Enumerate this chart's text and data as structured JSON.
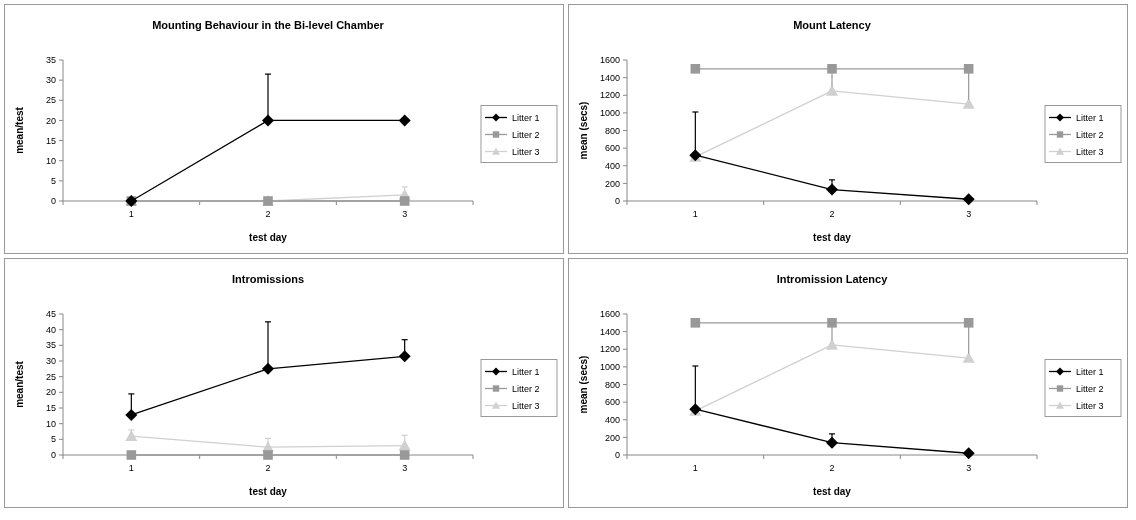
{
  "chart_data": [
    {
      "type": "line",
      "title": "Mounting Behaviour in the Bi-level Chamber",
      "xlabel": "test day",
      "ylabel": "mean/test",
      "categories": [
        "1",
        "2",
        "3"
      ],
      "ylim": [
        0,
        35
      ],
      "yticks": [
        0,
        5,
        10,
        15,
        20,
        25,
        30,
        35
      ],
      "grid": false,
      "legend": "right",
      "line_style": "solid",
      "series": [
        {
          "name": "Litter 1",
          "color": "#000000",
          "marker": "diamond",
          "values": [
            0,
            20,
            20
          ],
          "errors": [
            null,
            [
              20,
              31.5
            ],
            null
          ]
        },
        {
          "name": "Litter 2",
          "color": "#999999",
          "marker": "square",
          "values": [
            0,
            0,
            0
          ]
        },
        {
          "name": "Litter 3",
          "color": "#d0d0d0",
          "marker": "triangle",
          "values": [
            0,
            0,
            1.5
          ],
          "errors": [
            null,
            null,
            [
              1.5,
              3.5
            ]
          ]
        }
      ]
    },
    {
      "type": "line",
      "title": "Mount Latency",
      "xlabel": "test day",
      "ylabel": "mean (secs)",
      "categories": [
        "1",
        "2",
        "3"
      ],
      "ylim": [
        0,
        1600
      ],
      "yticks": [
        0,
        200,
        400,
        600,
        800,
        1000,
        1200,
        1400,
        1600
      ],
      "grid": false,
      "legend": "right",
      "line_style": "solid",
      "series": [
        {
          "name": "Litter 1",
          "color": "#000000",
          "marker": "diamond",
          "values": [
            520,
            130,
            20
          ],
          "errors": [
            [
              520,
              1010
            ],
            [
              130,
              240
            ],
            null
          ]
        },
        {
          "name": "Litter 2",
          "color": "#999999",
          "marker": "square",
          "values": [
            1500,
            1500,
            1500
          ],
          "errors": [
            null,
            [
              1300,
              1500
            ],
            [
              1150,
              1500
            ]
          ]
        },
        {
          "name": "Litter 3",
          "color": "#d0d0d0",
          "marker": "triangle",
          "values": [
            500,
            1250,
            1100
          ]
        }
      ]
    },
    {
      "type": "line",
      "title": "Intromissions",
      "xlabel": "test day",
      "ylabel": "mean/test",
      "categories": [
        "1",
        "2",
        "3"
      ],
      "ylim": [
        0,
        45
      ],
      "yticks": [
        0,
        5,
        10,
        15,
        20,
        25,
        30,
        35,
        40,
        45
      ],
      "grid": false,
      "legend": "right",
      "line_style": "solid",
      "series": [
        {
          "name": "Litter 1",
          "color": "#000000",
          "marker": "diamond",
          "values": [
            12.8,
            27.5,
            31.5
          ],
          "errors": [
            [
              12.8,
              19.5
            ],
            [
              27.5,
              42.5
            ],
            [
              31.5,
              36.8
            ]
          ]
        },
        {
          "name": "Litter 2",
          "color": "#999999",
          "marker": "square",
          "values": [
            0,
            0,
            0
          ]
        },
        {
          "name": "Litter 3",
          "color": "#d0d0d0",
          "marker": "triangle",
          "values": [
            6,
            2.5,
            3
          ],
          "errors": [
            [
              6,
              8
            ],
            [
              2.5,
              5.3
            ],
            [
              3,
              6.3
            ]
          ]
        }
      ]
    },
    {
      "type": "line",
      "title": "Intromission Latency",
      "xlabel": "test day",
      "ylabel": "mean (secs)",
      "categories": [
        "1",
        "2",
        "3"
      ],
      "ylim": [
        0,
        1600
      ],
      "yticks": [
        0,
        200,
        400,
        600,
        800,
        1000,
        1200,
        1400,
        1600
      ],
      "grid": false,
      "legend": "right",
      "line_style": "solid",
      "series": [
        {
          "name": "Litter 1",
          "color": "#000000",
          "marker": "diamond",
          "values": [
            520,
            140,
            20
          ],
          "errors": [
            [
              520,
              1010
            ],
            [
              140,
              240
            ],
            null
          ]
        },
        {
          "name": "Litter 2",
          "color": "#999999",
          "marker": "square",
          "values": [
            1500,
            1500,
            1500
          ],
          "errors": [
            null,
            [
              1300,
              1500
            ],
            [
              1150,
              1500
            ]
          ]
        },
        {
          "name": "Litter 3",
          "color": "#d0d0d0",
          "marker": "triangle",
          "values": [
            500,
            1250,
            1100
          ]
        }
      ]
    }
  ]
}
